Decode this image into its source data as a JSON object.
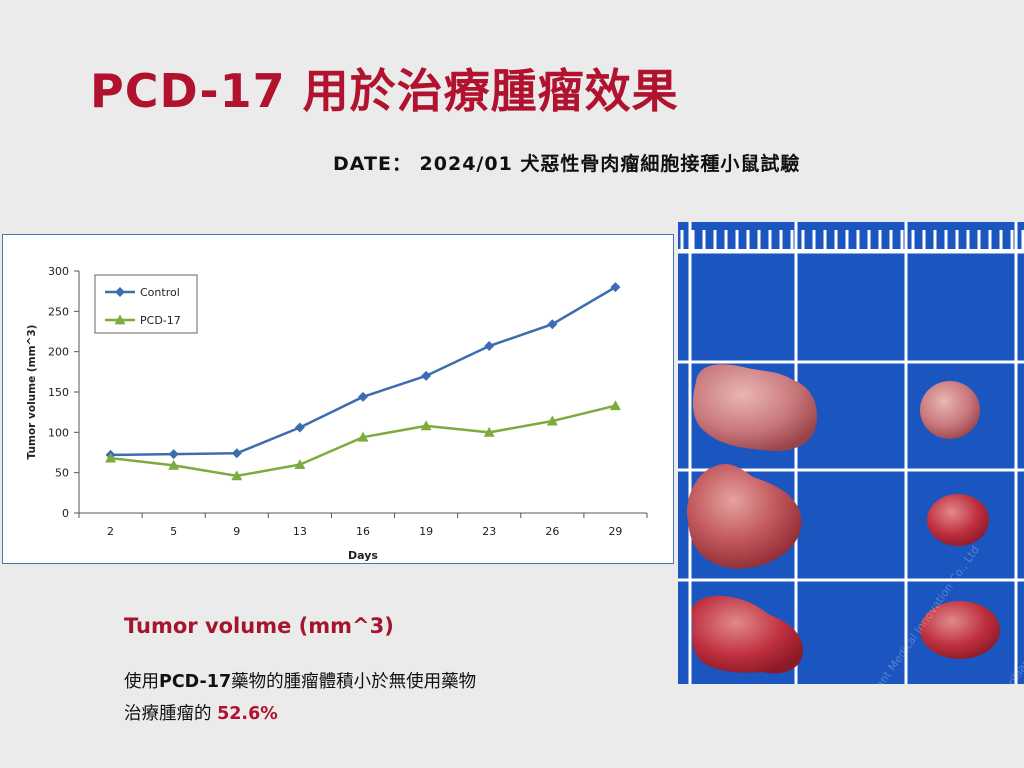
{
  "slide": {
    "title": "PCD-17 用於治療腫瘤效果",
    "date_line": "DATE： 2024/01 犬惡性骨肉瘤細胞接種小鼠試驗",
    "caption_title": "Tumor volume (mm^3)",
    "caption_line1_pre": "使用",
    "caption_line1_bold": "PCD-17",
    "caption_line1_post": "藥物的腫瘤體積小於無使用藥物",
    "caption_line2_pre": "治療腫瘤的 ",
    "caption_line2_highlight": "52.6%"
  },
  "photo": {
    "watermark": "Brilliant Medical Innovation Co., Ltd",
    "colors": {
      "background": "#1b55c0",
      "grid": "#ffffff",
      "tumor": "#b8484e"
    }
  },
  "chart_data": {
    "type": "line",
    "categories": [
      "2",
      "5",
      "9",
      "13",
      "16",
      "19",
      "23",
      "26",
      "29"
    ],
    "series": [
      {
        "name": "Control",
        "values": [
          72,
          73,
          74,
          106,
          144,
          170,
          207,
          234,
          280
        ],
        "color": "#3d6db0",
        "marker": "diamond"
      },
      {
        "name": "PCD-17",
        "values": [
          68,
          59,
          46,
          60,
          94,
          108,
          100,
          114,
          133
        ],
        "color": "#7dab3e",
        "marker": "triangle"
      }
    ],
    "xlabel": "Days",
    "ylabel": "Tumor volume (mm^3)",
    "ylim": [
      0,
      300
    ],
    "yticks": [
      0,
      50,
      100,
      150,
      200,
      250,
      300
    ],
    "grid": false,
    "legend": "top-left"
  }
}
